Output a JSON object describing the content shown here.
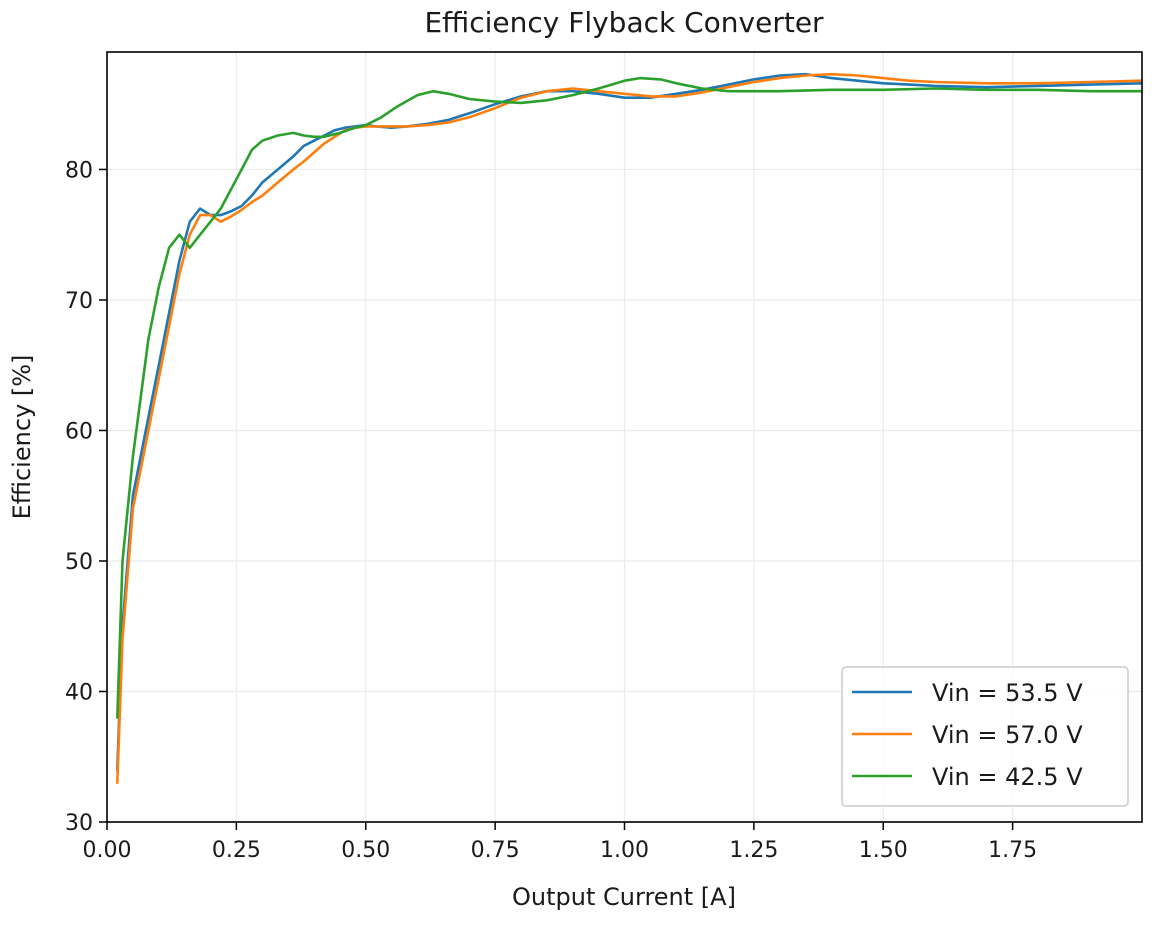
{
  "chart_data": {
    "type": "line",
    "title": "Efficiency Flyback Converter",
    "xlabel": "Output Current [A]",
    "ylabel": "Efficiency [%]",
    "xlim": [
      0.0,
      2.0
    ],
    "ylim": [
      30,
      89
    ],
    "x_ticks": [
      "0.00",
      "0.25",
      "0.50",
      "0.75",
      "1.00",
      "1.25",
      "1.50",
      "1.75"
    ],
    "y_ticks": [
      "30",
      "40",
      "50",
      "60",
      "70",
      "80"
    ],
    "grid": true,
    "legend_position": "bottom-right",
    "series": [
      {
        "name": "Vin = 53.5 V",
        "color": "#1f77b4",
        "x": [
          0.02,
          0.03,
          0.05,
          0.08,
          0.1,
          0.12,
          0.14,
          0.16,
          0.18,
          0.2,
          0.22,
          0.24,
          0.26,
          0.28,
          0.3,
          0.33,
          0.36,
          0.38,
          0.4,
          0.42,
          0.44,
          0.46,
          0.48,
          0.5,
          0.52,
          0.55,
          0.58,
          0.62,
          0.66,
          0.7,
          0.75,
          0.8,
          0.85,
          0.9,
          0.95,
          1.0,
          1.05,
          1.1,
          1.15,
          1.2,
          1.25,
          1.3,
          1.35,
          1.4,
          1.45,
          1.5,
          1.55,
          1.6,
          1.7,
          1.8,
          1.9,
          2.0
        ],
        "y": [
          34,
          45,
          55,
          61,
          65,
          69,
          73,
          76,
          77,
          76.5,
          76.5,
          76.8,
          77.2,
          78,
          79,
          80,
          81,
          81.8,
          82.2,
          82.6,
          83,
          83.2,
          83.3,
          83.4,
          83.3,
          83.2,
          83.3,
          83.5,
          83.8,
          84.3,
          85,
          85.6,
          86,
          86,
          85.8,
          85.5,
          85.5,
          85.8,
          86.1,
          86.5,
          86.9,
          87.2,
          87.3,
          87,
          86.8,
          86.6,
          86.5,
          86.4,
          86.3,
          86.4,
          86.5,
          86.6
        ]
      },
      {
        "name": "Vin = 57.0 V",
        "color": "#ff7f0e",
        "x": [
          0.02,
          0.03,
          0.05,
          0.08,
          0.1,
          0.12,
          0.14,
          0.16,
          0.18,
          0.2,
          0.22,
          0.24,
          0.26,
          0.28,
          0.3,
          0.33,
          0.36,
          0.38,
          0.4,
          0.42,
          0.44,
          0.46,
          0.48,
          0.5,
          0.52,
          0.55,
          0.58,
          0.62,
          0.66,
          0.7,
          0.75,
          0.8,
          0.85,
          0.9,
          0.95,
          1.0,
          1.05,
          1.1,
          1.15,
          1.2,
          1.25,
          1.3,
          1.35,
          1.4,
          1.45,
          1.5,
          1.55,
          1.6,
          1.7,
          1.8,
          1.9,
          2.0
        ],
        "y": [
          33,
          44,
          54,
          60,
          64,
          68,
          72,
          75,
          76.5,
          76.5,
          76,
          76.4,
          76.9,
          77.5,
          78,
          79,
          80,
          80.6,
          81.3,
          82,
          82.5,
          83,
          83.2,
          83.3,
          83.3,
          83.3,
          83.3,
          83.4,
          83.6,
          84,
          84.7,
          85.5,
          86,
          86.2,
          86,
          85.8,
          85.6,
          85.6,
          85.9,
          86.3,
          86.7,
          87,
          87.2,
          87.3,
          87.2,
          87,
          86.8,
          86.7,
          86.6,
          86.6,
          86.7,
          86.8
        ]
      },
      {
        "name": "Vin = 42.5 V",
        "color": "#2ca02c",
        "x": [
          0.02,
          0.03,
          0.05,
          0.08,
          0.1,
          0.12,
          0.14,
          0.16,
          0.18,
          0.2,
          0.22,
          0.24,
          0.26,
          0.28,
          0.3,
          0.33,
          0.36,
          0.38,
          0.4,
          0.42,
          0.45,
          0.48,
          0.5,
          0.53,
          0.56,
          0.6,
          0.63,
          0.66,
          0.7,
          0.75,
          0.8,
          0.85,
          0.9,
          0.95,
          1.0,
          1.03,
          1.07,
          1.1,
          1.15,
          1.2,
          1.25,
          1.3,
          1.4,
          1.5,
          1.6,
          1.7,
          1.8,
          1.9,
          2.0
        ],
        "y": [
          38,
          50,
          58,
          67,
          71,
          74,
          75,
          74,
          75,
          76,
          77,
          78.5,
          80,
          81.5,
          82.2,
          82.6,
          82.8,
          82.6,
          82.5,
          82.5,
          82.8,
          83.2,
          83.4,
          84,
          84.8,
          85.7,
          86,
          85.8,
          85.4,
          85.2,
          85.1,
          85.3,
          85.7,
          86.2,
          86.8,
          87,
          86.9,
          86.6,
          86.2,
          86,
          86,
          86,
          86.1,
          86.1,
          86.2,
          86.1,
          86.1,
          86.0,
          86.0
        ]
      }
    ]
  }
}
